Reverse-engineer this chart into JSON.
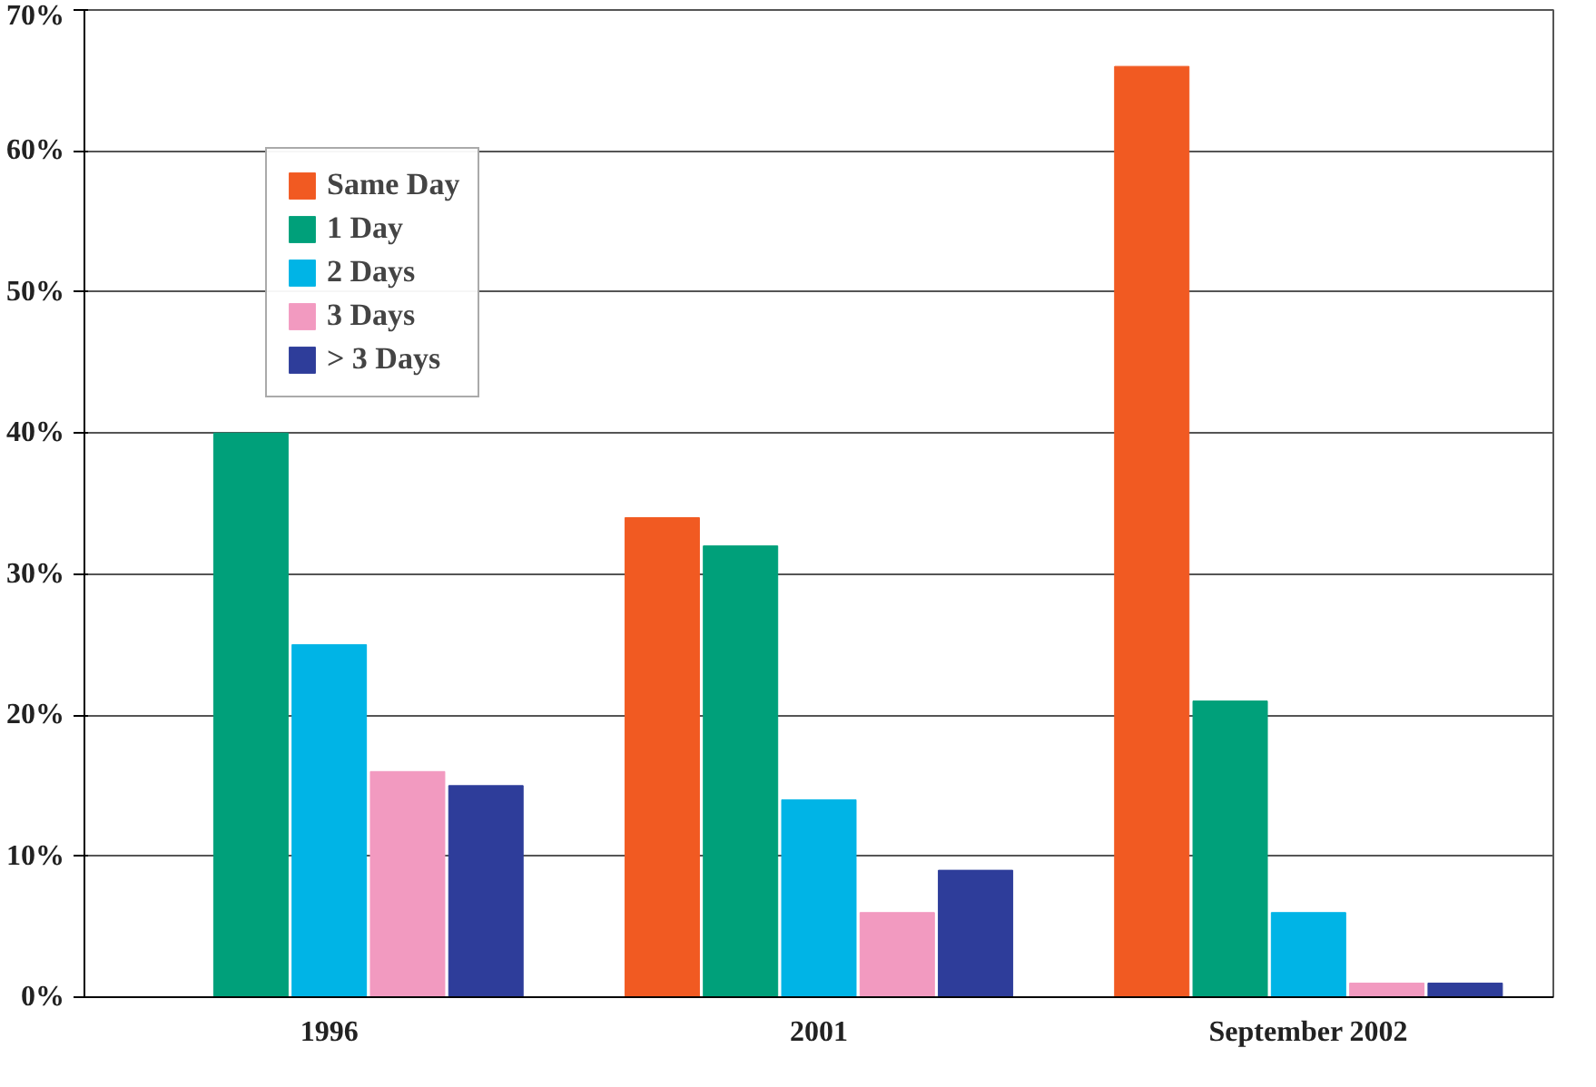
{
  "chart_data": {
    "type": "bar",
    "categories": [
      "1996",
      "2001",
      "September 2002"
    ],
    "series": [
      {
        "name": "Same Day",
        "color": "#f15a22",
        "values": [
          0,
          34,
          66
        ]
      },
      {
        "name": "1 Day",
        "color": "#00a07a",
        "values": [
          40,
          32,
          21
        ]
      },
      {
        "name": "2 Days",
        "color": "#00b4e6",
        "values": [
          25,
          14,
          6
        ]
      },
      {
        "name": "3 Days",
        "color": "#f29ac0",
        "values": [
          16,
          6,
          1
        ]
      },
      {
        "name": "> 3 Days",
        "color": "#2e3d9a",
        "values": [
          15,
          9,
          1
        ]
      }
    ],
    "ylim": [
      0,
      70
    ],
    "yticks": [
      {
        "value": 0,
        "label": "0%"
      },
      {
        "value": 10,
        "label": "10%"
      },
      {
        "value": 20,
        "label": "20%"
      },
      {
        "value": 30,
        "label": "30%"
      },
      {
        "value": 40,
        "label": "40%"
      },
      {
        "value": 50,
        "label": "50%"
      },
      {
        "value": 60,
        "label": "60%"
      },
      {
        "value": 70,
        "label": "70%"
      }
    ],
    "grid": "y",
    "legend": "top left"
  }
}
